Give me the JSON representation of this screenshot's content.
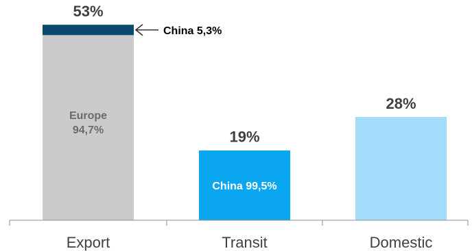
{
  "chart_data": {
    "type": "bar",
    "stacked": true,
    "categories": [
      "Export",
      "Transit",
      "Domestic"
    ],
    "totals": [
      53,
      19,
      28
    ],
    "total_labels": [
      "53%",
      "19%",
      "28%"
    ],
    "segments": [
      [
        {
          "name": "Europe",
          "share": 94.7,
          "label_lines": [
            "Europe",
            "94,7%"
          ],
          "color": "#cbcbcb",
          "text_color": "#6b6b6b"
        },
        {
          "name": "China",
          "share": 5.3,
          "label_lines": [],
          "color": "#0b4a6f",
          "text_color": "#ffffff"
        }
      ],
      [
        {
          "name": "China",
          "share": 99.5,
          "label_lines": [
            "China 99,5%"
          ],
          "color": "#0aa6f0",
          "text_color": "#ffffff"
        }
      ],
      [
        {
          "name": "",
          "share": 100,
          "label_lines": [],
          "color": "#a6dcfb",
          "text_color": "#404040"
        }
      ]
    ],
    "annotation": {
      "text": "China 5,3%",
      "category": "Export",
      "segment": 1
    },
    "ylim": [
      0,
      56
    ],
    "grid": false,
    "legend": "none",
    "xlabel": "",
    "ylabel": ""
  }
}
